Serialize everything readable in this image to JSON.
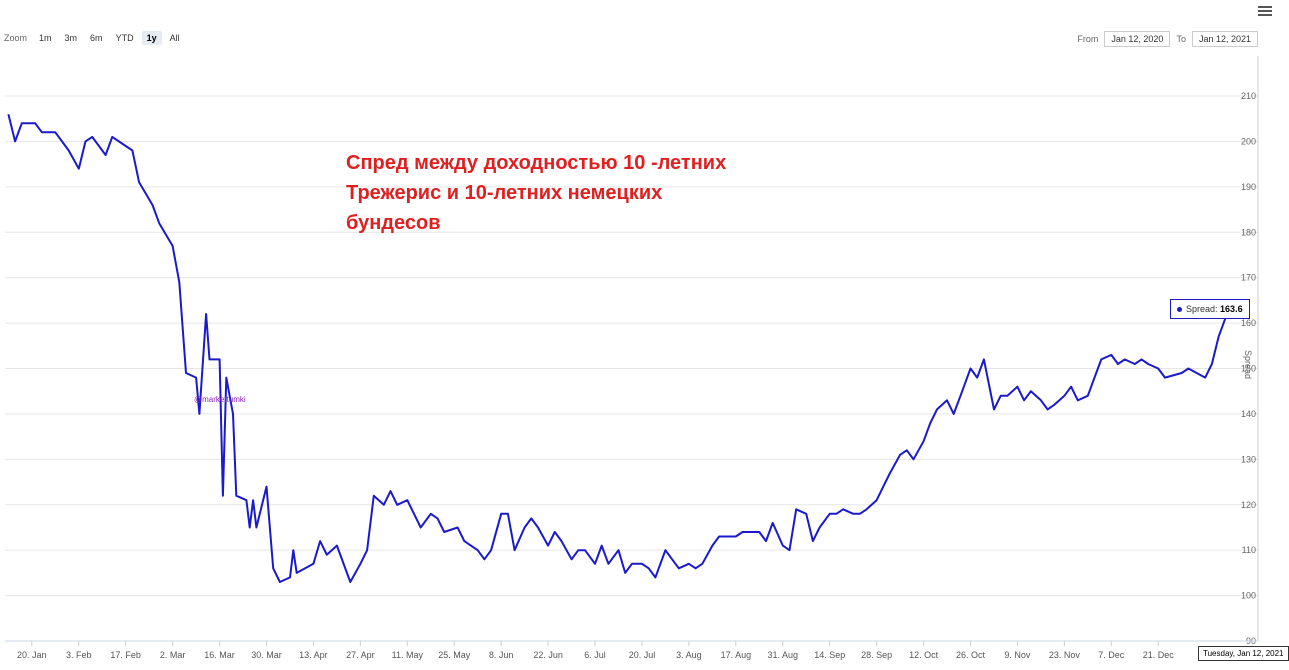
{
  "toolbar": {
    "zoom_label": "Zoom",
    "ranges": [
      "1m",
      "3m",
      "6m",
      "YTD",
      "1y",
      "All"
    ],
    "selected": "1y"
  },
  "range": {
    "from_label": "From",
    "from_value": "Jan 12, 2020",
    "to_label": "To",
    "to_value": "Jan 12, 2021"
  },
  "annotation": [
    "Спред между доходностью 10 -летних",
    "Трежерис и 10-летних немецких",
    "бундесов"
  ],
  "watermark": "@markettumki",
  "tooltip": {
    "label": "Spread:",
    "value": "163.6"
  },
  "date_badge": "Tuesday, Jan 12, 2021",
  "chart_data": {
    "type": "line",
    "ylabel": "Spread",
    "ylim": [
      90,
      210
    ],
    "yticks": [
      90,
      100,
      110,
      120,
      130,
      140,
      150,
      160,
      170,
      180,
      190,
      200,
      210
    ],
    "xticks": [
      "20. Jan",
      "3. Feb",
      "17. Feb",
      "2. Mar",
      "16. Mar",
      "30. Mar",
      "13. Apr",
      "27. Apr",
      "11. May",
      "25. May",
      "8. Jun",
      "22. Jun",
      "6. Jul",
      "20. Jul",
      "3. Aug",
      "17. Aug",
      "31. Aug",
      "14. Sep",
      "28. Sep",
      "12. Oct",
      "26. Oct",
      "9. Nov",
      "23. Nov",
      "7. Dec",
      "21. Dec"
    ],
    "series": [
      {
        "name": "Spread",
        "color": "#1a1acc",
        "points": [
          [
            "2020-01-13",
            206
          ],
          [
            "2020-01-15",
            200
          ],
          [
            "2020-01-17",
            204
          ],
          [
            "2020-01-21",
            204
          ],
          [
            "2020-01-23",
            202
          ],
          [
            "2020-01-27",
            202
          ],
          [
            "2020-01-29",
            200
          ],
          [
            "2020-01-31",
            198
          ],
          [
            "2020-02-03",
            194
          ],
          [
            "2020-02-05",
            200
          ],
          [
            "2020-02-07",
            201
          ],
          [
            "2020-02-11",
            197
          ],
          [
            "2020-02-13",
            201
          ],
          [
            "2020-02-17",
            199
          ],
          [
            "2020-02-19",
            198
          ],
          [
            "2020-02-21",
            191
          ],
          [
            "2020-02-25",
            186
          ],
          [
            "2020-02-27",
            182
          ],
          [
            "2020-03-02",
            177
          ],
          [
            "2020-03-04",
            169
          ],
          [
            "2020-03-06",
            149
          ],
          [
            "2020-03-09",
            148
          ],
          [
            "2020-03-10",
            140
          ],
          [
            "2020-03-12",
            162
          ],
          [
            "2020-03-13",
            152
          ],
          [
            "2020-03-16",
            152
          ],
          [
            "2020-03-17",
            122
          ],
          [
            "2020-03-18",
            148
          ],
          [
            "2020-03-20",
            140
          ],
          [
            "2020-03-21",
            122
          ],
          [
            "2020-03-24",
            121
          ],
          [
            "2020-03-25",
            115
          ],
          [
            "2020-03-26",
            121
          ],
          [
            "2020-03-27",
            115
          ],
          [
            "2020-03-30",
            124
          ],
          [
            "2020-04-01",
            106
          ],
          [
            "2020-04-03",
            103
          ],
          [
            "2020-04-06",
            104
          ],
          [
            "2020-04-07",
            110
          ],
          [
            "2020-04-08",
            105
          ],
          [
            "2020-04-13",
            107
          ],
          [
            "2020-04-15",
            112
          ],
          [
            "2020-04-17",
            109
          ],
          [
            "2020-04-20",
            111
          ],
          [
            "2020-04-24",
            103
          ],
          [
            "2020-04-27",
            107
          ],
          [
            "2020-04-29",
            110
          ],
          [
            "2020-05-01",
            122
          ],
          [
            "2020-05-04",
            120
          ],
          [
            "2020-05-06",
            123
          ],
          [
            "2020-05-08",
            120
          ],
          [
            "2020-05-11",
            121
          ],
          [
            "2020-05-13",
            118
          ],
          [
            "2020-05-15",
            115
          ],
          [
            "2020-05-18",
            118
          ],
          [
            "2020-05-20",
            117
          ],
          [
            "2020-05-22",
            114
          ],
          [
            "2020-05-26",
            115
          ],
          [
            "2020-05-28",
            112
          ],
          [
            "2020-06-01",
            110
          ],
          [
            "2020-06-03",
            108
          ],
          [
            "2020-06-05",
            110
          ],
          [
            "2020-06-08",
            118
          ],
          [
            "2020-06-10",
            118
          ],
          [
            "2020-06-12",
            110
          ],
          [
            "2020-06-15",
            115
          ],
          [
            "2020-06-17",
            117
          ],
          [
            "2020-06-19",
            115
          ],
          [
            "2020-06-22",
            111
          ],
          [
            "2020-06-24",
            114
          ],
          [
            "2020-06-26",
            112
          ],
          [
            "2020-06-29",
            108
          ],
          [
            "2020-07-01",
            110
          ],
          [
            "2020-07-03",
            110
          ],
          [
            "2020-07-06",
            107
          ],
          [
            "2020-07-08",
            111
          ],
          [
            "2020-07-10",
            107
          ],
          [
            "2020-07-13",
            110
          ],
          [
            "2020-07-15",
            105
          ],
          [
            "2020-07-17",
            107
          ],
          [
            "2020-07-20",
            107
          ],
          [
            "2020-07-22",
            106
          ],
          [
            "2020-07-24",
            104
          ],
          [
            "2020-07-27",
            110
          ],
          [
            "2020-07-29",
            108
          ],
          [
            "2020-07-31",
            106
          ],
          [
            "2020-08-03",
            107
          ],
          [
            "2020-08-05",
            106
          ],
          [
            "2020-08-07",
            107
          ],
          [
            "2020-08-10",
            111
          ],
          [
            "2020-08-12",
            113
          ],
          [
            "2020-08-14",
            113
          ],
          [
            "2020-08-17",
            113
          ],
          [
            "2020-08-19",
            114
          ],
          [
            "2020-08-21",
            114
          ],
          [
            "2020-08-24",
            114
          ],
          [
            "2020-08-26",
            112
          ],
          [
            "2020-08-28",
            116
          ],
          [
            "2020-08-31",
            111
          ],
          [
            "2020-09-02",
            110
          ],
          [
            "2020-09-04",
            119
          ],
          [
            "2020-09-07",
            118
          ],
          [
            "2020-09-09",
            112
          ],
          [
            "2020-09-11",
            115
          ],
          [
            "2020-09-14",
            118
          ],
          [
            "2020-09-16",
            118
          ],
          [
            "2020-09-18",
            119
          ],
          [
            "2020-09-21",
            118
          ],
          [
            "2020-09-23",
            118
          ],
          [
            "2020-09-25",
            119
          ],
          [
            "2020-09-28",
            121
          ],
          [
            "2020-09-30",
            124
          ],
          [
            "2020-10-02",
            127
          ],
          [
            "2020-10-05",
            131
          ],
          [
            "2020-10-07",
            132
          ],
          [
            "2020-10-09",
            130
          ],
          [
            "2020-10-12",
            134
          ],
          [
            "2020-10-14",
            138
          ],
          [
            "2020-10-16",
            141
          ],
          [
            "2020-10-19",
            143
          ],
          [
            "2020-10-21",
            140
          ],
          [
            "2020-10-23",
            144
          ],
          [
            "2020-10-26",
            150
          ],
          [
            "2020-10-28",
            148
          ],
          [
            "2020-10-30",
            152
          ],
          [
            "2020-11-02",
            141
          ],
          [
            "2020-11-04",
            144
          ],
          [
            "2020-11-06",
            144
          ],
          [
            "2020-11-09",
            146
          ],
          [
            "2020-11-11",
            143
          ],
          [
            "2020-11-13",
            145
          ],
          [
            "2020-11-16",
            143
          ],
          [
            "2020-11-18",
            141
          ],
          [
            "2020-11-20",
            142
          ],
          [
            "2020-11-23",
            144
          ],
          [
            "2020-11-25",
            146
          ],
          [
            "2020-11-27",
            143
          ],
          [
            "2020-11-30",
            144
          ],
          [
            "2020-12-02",
            148
          ],
          [
            "2020-12-04",
            152
          ],
          [
            "2020-12-07",
            153
          ],
          [
            "2020-12-09",
            151
          ],
          [
            "2020-12-11",
            152
          ],
          [
            "2020-12-14",
            151
          ],
          [
            "2020-12-16",
            152
          ],
          [
            "2020-12-18",
            151
          ],
          [
            "2020-12-21",
            150
          ],
          [
            "2020-12-23",
            148
          ],
          [
            "2020-12-28",
            149
          ],
          [
            "2020-12-30",
            150
          ],
          [
            "2021-01-04",
            148
          ],
          [
            "2021-01-06",
            151
          ],
          [
            "2021-01-08",
            157
          ],
          [
            "2021-01-11",
            163
          ],
          [
            "2021-01-12",
            163.6
          ]
        ]
      }
    ]
  }
}
